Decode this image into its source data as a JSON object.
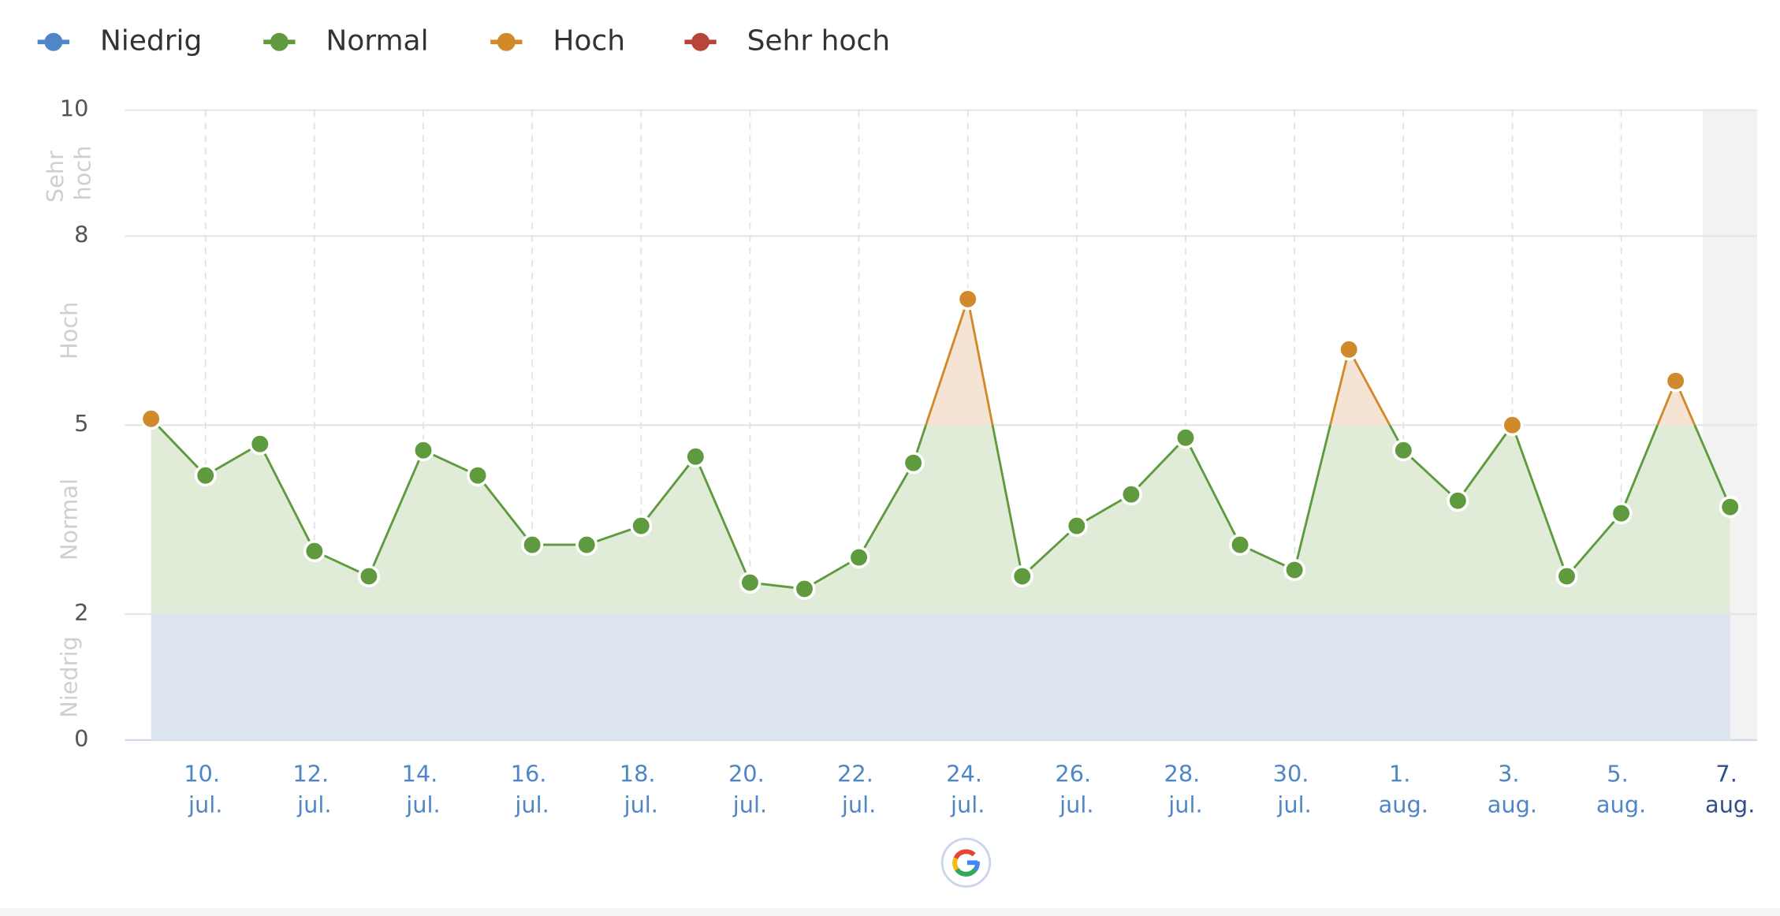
{
  "chart_data": {
    "type": "line",
    "bands": [
      {
        "name": "Niedrig",
        "color": "#4f86c6",
        "area": "#dde6f0",
        "from": 0,
        "to": 2
      },
      {
        "name": "Normal",
        "color": "#5f9a3e",
        "area": "#e0ebd8",
        "from": 2,
        "to": 5
      },
      {
        "name": "Hoch",
        "color": "#d18a2b",
        "area": "#f5e3d3",
        "from": 5,
        "to": 8
      },
      {
        "name": "Sehr hoch",
        "color": "#b8453a",
        "area": "#f3dcd9",
        "from": 8,
        "to": 10
      }
    ],
    "categories": [
      null,
      "10. jul.",
      null,
      "12. jul.",
      null,
      "14. jul.",
      null,
      "16. jul.",
      null,
      "18. jul.",
      null,
      "20. jul.",
      null,
      "22. jul.",
      null,
      "24. jul.",
      null,
      "26. jul.",
      null,
      "28. jul.",
      null,
      "30. jul.",
      null,
      "1. aug.",
      null,
      "3. aug.",
      null,
      "5. aug.",
      null,
      "7. aug."
    ],
    "values": [
      5.1,
      4.2,
      4.7,
      3.0,
      2.6,
      4.6,
      4.2,
      3.1,
      3.1,
      3.4,
      4.5,
      2.5,
      2.4,
      2.9,
      4.4,
      7.0,
      2.6,
      3.4,
      3.9,
      4.8,
      3.1,
      2.7,
      6.2,
      4.6,
      3.8,
      5.0,
      2.6,
      3.6,
      5.7,
      3.7
    ],
    "ylim": [
      0,
      10
    ],
    "yticks": [
      0,
      2,
      5,
      8,
      10
    ],
    "grid": true,
    "legend": "top-left",
    "highlight_last": true
  }
}
